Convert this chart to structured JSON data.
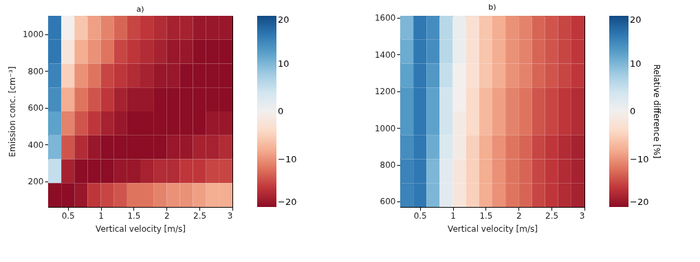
{
  "chart_data": [
    {
      "type": "heatmap",
      "title": "a)",
      "xlabel": "Vertical velocity [m/s]",
      "ylabel": "Emission conc. [cm⁻³]",
      "x": [
        0.3,
        0.5,
        0.7,
        0.9,
        1.1,
        1.3,
        1.5,
        1.7,
        1.9,
        2.1,
        2.3,
        2.5,
        2.7,
        2.9
      ],
      "y": [
        1035,
        905,
        775,
        645,
        515,
        385,
        255,
        125
      ],
      "xlim": [
        0.2,
        3
      ],
      "xticks": [
        0.5,
        1,
        1.5,
        2,
        2.5,
        3
      ],
      "ylim": [
        60,
        1100
      ],
      "yticks": [
        200,
        400,
        600,
        800,
        1000
      ],
      "cells": [
        [
          16,
          0,
          -6,
          -9,
          -11,
          -13,
          -15,
          -16,
          -17,
          -18,
          -18,
          -19,
          -19,
          -19
        ],
        [
          16,
          -2,
          -8,
          -10,
          -12,
          -15,
          -16,
          -17,
          -18,
          -19,
          -19,
          -20,
          -20,
          -20
        ],
        [
          15,
          -5,
          -10,
          -12,
          -15,
          -16,
          -17,
          -18,
          -19,
          -19,
          -20,
          -20,
          -20,
          -20
        ],
        [
          14,
          -8,
          -12,
          -14,
          -16,
          -18,
          -19,
          -19,
          -20,
          -20,
          -20,
          -20,
          -20,
          -20
        ],
        [
          12,
          -11,
          -14,
          -16,
          -18,
          -19,
          -20,
          -20,
          -20,
          -20,
          -20,
          -20,
          -19,
          -19
        ],
        [
          10,
          -14,
          -17,
          -19,
          -20,
          -20,
          -20,
          -20,
          -20,
          -19,
          -19,
          -18,
          -18,
          -17
        ],
        [
          5,
          -18,
          -20,
          -20,
          -20,
          -19,
          -19,
          -18,
          -17,
          -17,
          -16,
          -16,
          -15,
          -15
        ],
        [
          -20,
          -20,
          -19,
          -16,
          -15,
          -14,
          -12,
          -12,
          -11,
          -10,
          -10,
          -9,
          -8,
          -8
        ]
      ],
      "clim": [
        -20,
        20
      ],
      "cticks": [
        -20,
        -10,
        0,
        10,
        20
      ]
    },
    {
      "type": "heatmap",
      "title": "b)",
      "xlabel": "Vertical velocity [m/s]",
      "clabel": "Relative difference [%]",
      "x": [
        0.3,
        0.5,
        0.7,
        0.9,
        1.1,
        1.3,
        1.5,
        1.7,
        1.9,
        2.1,
        2.3,
        2.5,
        2.7,
        2.9
      ],
      "y": [
        1545,
        1415,
        1285,
        1155,
        1025,
        895,
        765,
        635
      ],
      "xlim": [
        0.2,
        3
      ],
      "xticks": [
        0.5,
        1,
        1.5,
        2,
        2.5,
        3
      ],
      "ylim": [
        570,
        1610
      ],
      "yticks": [
        600,
        800,
        1000,
        1200,
        1400,
        1600
      ],
      "cells": [
        [
          10,
          16,
          14,
          6,
          1,
          -3,
          -6,
          -8,
          -10,
          -11,
          -13,
          -14,
          -15,
          -16
        ],
        [
          11,
          16,
          14,
          6,
          1,
          -3,
          -6,
          -8,
          -10,
          -11,
          -13,
          -14,
          -15,
          -16
        ],
        [
          12,
          16,
          13,
          5,
          0,
          -3,
          -6,
          -8,
          -10,
          -11,
          -13,
          -14,
          -15,
          -16
        ],
        [
          13,
          16,
          12,
          4,
          0,
          -4,
          -7,
          -9,
          -11,
          -12,
          -14,
          -15,
          -16,
          -17
        ],
        [
          13,
          16,
          12,
          4,
          -1,
          -4,
          -7,
          -9,
          -11,
          -12,
          -14,
          -15,
          -16,
          -17
        ],
        [
          14,
          16,
          11,
          3,
          -1,
          -5,
          -8,
          -10,
          -12,
          -13,
          -15,
          -16,
          -17,
          -18
        ],
        [
          15,
          16,
          10,
          2,
          -2,
          -5,
          -8,
          -10,
          -12,
          -13,
          -15,
          -16,
          -17,
          -18
        ],
        [
          15,
          16,
          10,
          2,
          -2,
          -5,
          -8,
          -10,
          -12,
          -13,
          -15,
          -16,
          -17,
          -18
        ]
      ],
      "clim": [
        -20,
        20
      ],
      "cticks": [
        -20,
        -10,
        0,
        10,
        20
      ]
    }
  ]
}
